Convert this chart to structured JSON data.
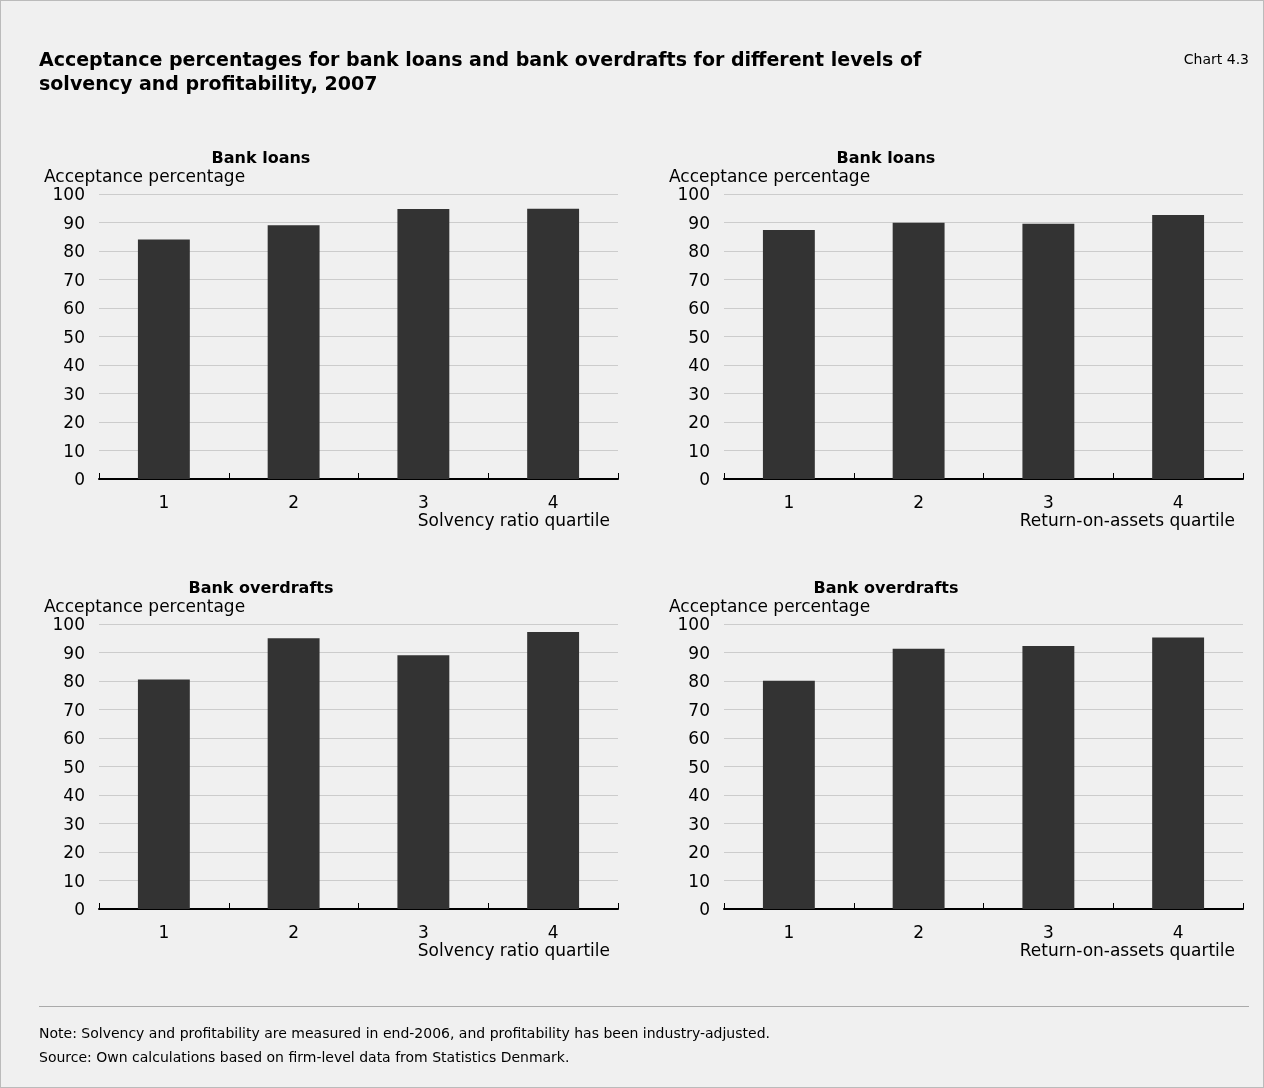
{
  "chart_data": [
    {
      "type": "other",
      "title": "Acceptance percentages for bank loans and bank overdrafts for different levels of solvency and profitability, 2007",
      "annotations": [
        "Chart 4.3"
      ]
    },
    {
      "type": "bar",
      "title": "Bank loans",
      "ylabel": "Acceptance percentage",
      "xlabel": "Solvency ratio quartile",
      "categories": [
        "1",
        "2",
        "3",
        "4"
      ],
      "values": [
        84,
        89,
        94.7,
        94.8
      ],
      "color": "#333333",
      "ylim": [
        0,
        100
      ],
      "yticks": [
        0,
        10,
        20,
        30,
        40,
        50,
        60,
        70,
        80,
        90,
        100
      ],
      "grid": "y"
    },
    {
      "type": "bar",
      "title": "Bank loans",
      "ylabel": "Acceptance percentage",
      "xlabel": "Return-on-assets quartile",
      "categories": [
        "1",
        "2",
        "3",
        "4"
      ],
      "values": [
        87.4,
        89.9,
        89.6,
        92.6
      ],
      "color": "#333333",
      "ylim": [
        0,
        100
      ],
      "yticks": [
        0,
        10,
        20,
        30,
        40,
        50,
        60,
        70,
        80,
        90,
        100
      ],
      "grid": "y"
    },
    {
      "type": "bar",
      "title": "Bank overdrafts",
      "ylabel": "Acceptance percentage",
      "xlabel": "Solvency ratio quartile",
      "categories": [
        "1",
        "2",
        "3",
        "4"
      ],
      "values": [
        80.5,
        95,
        89,
        97.2
      ],
      "color": "#333333",
      "ylim": [
        0,
        100
      ],
      "yticks": [
        0,
        10,
        20,
        30,
        40,
        50,
        60,
        70,
        80,
        90,
        100
      ],
      "grid": "y"
    },
    {
      "type": "bar",
      "title": "Bank overdrafts",
      "ylabel": "Acceptance percentage",
      "xlabel": "Return-on-assets quartile",
      "categories": [
        "1",
        "2",
        "3",
        "4"
      ],
      "values": [
        80.1,
        91.3,
        92.3,
        95.3
      ],
      "color": "#333333",
      "ylim": [
        0,
        100
      ],
      "yticks": [
        0,
        10,
        20,
        30,
        40,
        50,
        60,
        70,
        80,
        90,
        100
      ],
      "grid": "y"
    },
    {
      "type": "other",
      "annotations": [
        "Note: Solvency and profitability are measured in end-2006, and profitability has been industry-adjusted.",
        "Source: Own calculations based on firm-level data from Statistics Denmark."
      ]
    }
  ]
}
